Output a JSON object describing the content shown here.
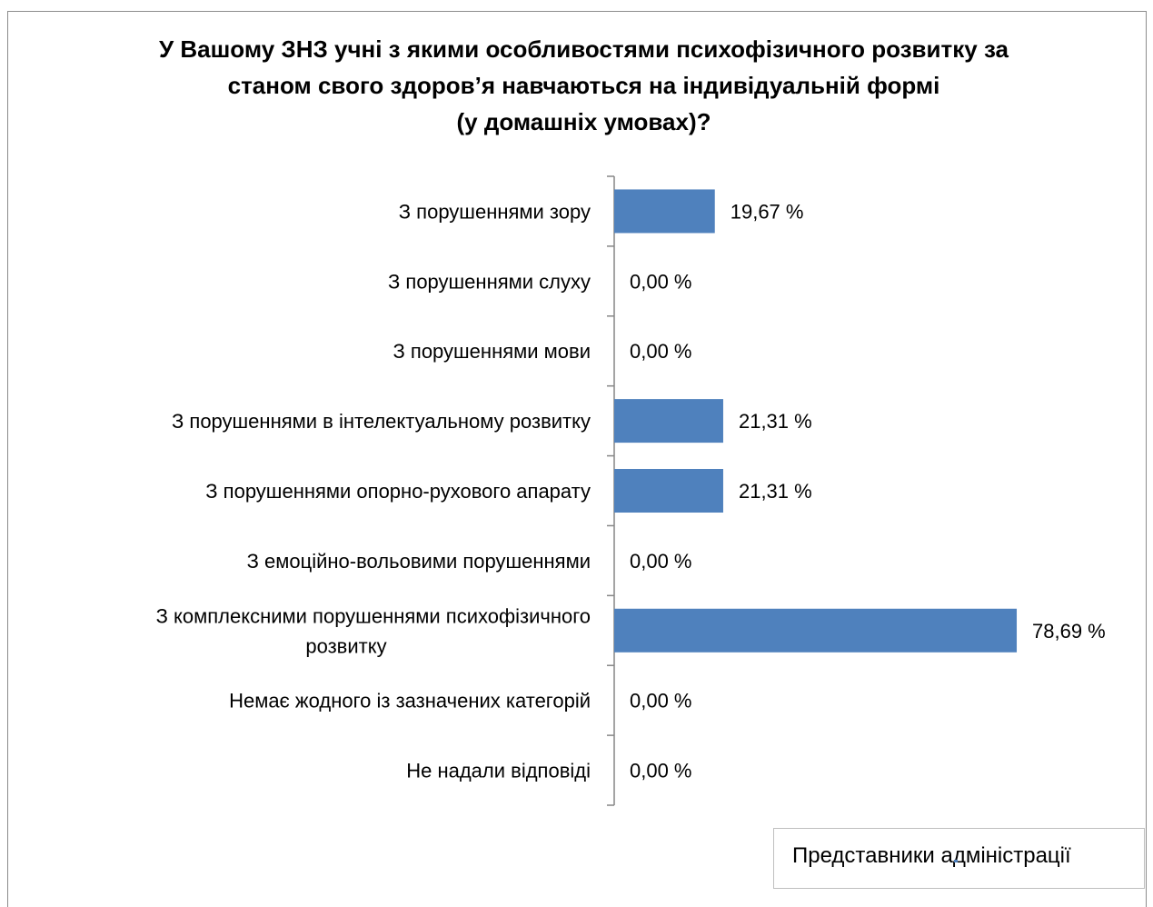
{
  "chart_data": {
    "type": "bar",
    "orientation": "horizontal",
    "title": [
      "У Вашому ЗНЗ учні з якими особливостями психофізичного розвитку за",
      "станом свого здоров’я навчаються на індивідуальній формі",
      "(у домашніх умовах)?"
    ],
    "categories": [
      [
        "З порушеннями зору"
      ],
      [
        "З порушеннями слуху"
      ],
      [
        "З порушеннями мови"
      ],
      [
        "З порушеннями в інтелектуальному розвитку"
      ],
      [
        "З порушеннями опорно-рухового апарату"
      ],
      [
        "З емоційно-вольовими порушеннями"
      ],
      [
        "З комплексними порушеннями психофізичного",
        "розвитку"
      ],
      [
        "Немає жодного із зазначених категорій"
      ],
      [
        "Не надали відповіді"
      ]
    ],
    "series": [
      {
        "name": "Представники адміністрації",
        "color": "#4f81bd",
        "values": [
          19.67,
          0.0,
          0.0,
          21.31,
          21.31,
          0.0,
          78.69,
          0.0,
          0.0
        ],
        "labels": [
          "19,67 %",
          "0,00 %",
          "0,00 %",
          "21,31 %",
          "21,31 %",
          "0,00 %",
          "78,69 %",
          "0,00 %",
          "0,00 %"
        ]
      }
    ],
    "xlim": [
      0,
      100
    ],
    "grid": false,
    "legend": "bottom-right"
  }
}
